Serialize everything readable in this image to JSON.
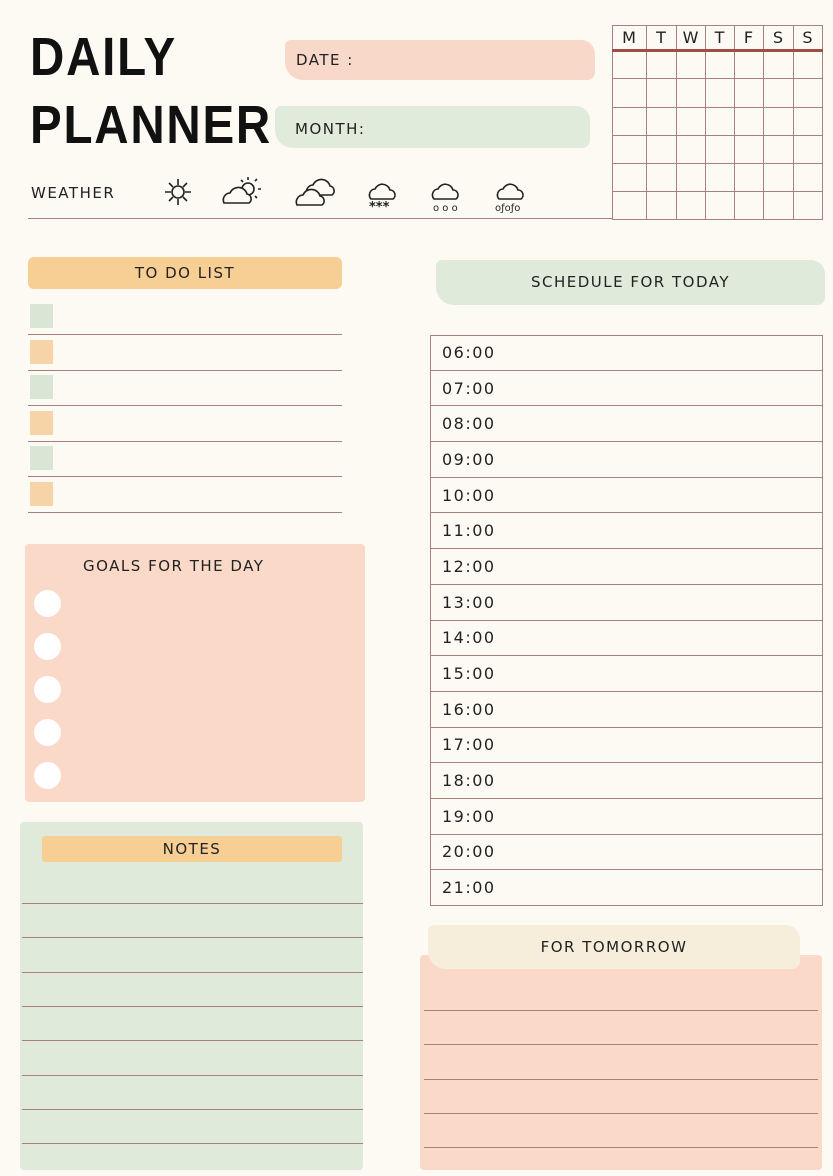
{
  "header": {
    "title_line1": "DAILY",
    "title_line2": "PLANNER",
    "date_label": "DATE :",
    "month_label": "MONTH:"
  },
  "weather": {
    "label": "WEATHER",
    "icons": [
      "sun-icon",
      "partly-cloudy-icon",
      "cloudy-icon",
      "snow-icon",
      "rain-icon",
      "thunderstorm-icon"
    ]
  },
  "calendar": {
    "days": [
      "M",
      "T",
      "W",
      "T",
      "F",
      "S",
      "S"
    ]
  },
  "todo": {
    "title": "TO DO LIST"
  },
  "goals": {
    "title": "GOALS FOR THE DAY"
  },
  "notes": {
    "title": "NOTES"
  },
  "schedule": {
    "title": "SCHEDULE FOR TODAY",
    "times": [
      "06:00",
      "07:00",
      "08:00",
      "09:00",
      "10:00",
      "11:00",
      "12:00",
      "13:00",
      "14:00",
      "15:00",
      "16:00",
      "17:00",
      "18:00",
      "19:00",
      "20:00",
      "21:00"
    ]
  },
  "tomorrow": {
    "title": "FOR TOMORROW"
  },
  "colors": {
    "peach": "#f9d9c8",
    "green": "#e0eadb",
    "orange": "#f7cf95",
    "line": "#a9807c",
    "cream": "#f6eedb"
  }
}
